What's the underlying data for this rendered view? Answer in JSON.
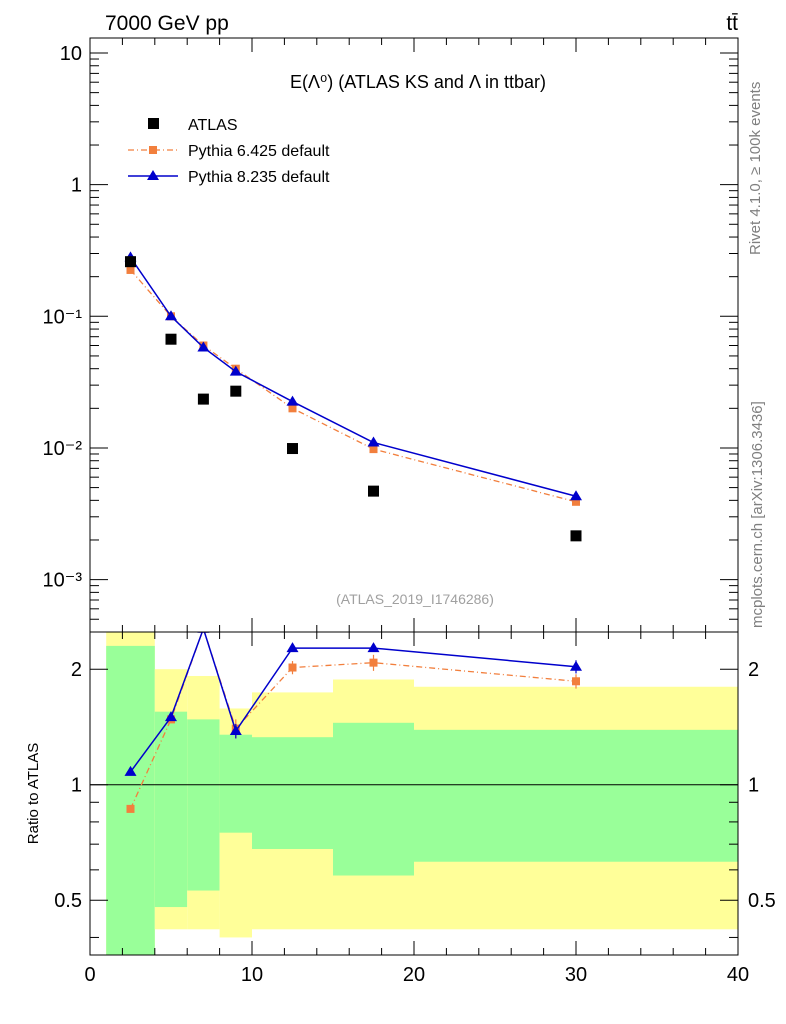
{
  "header": {
    "left": "7000 GeV pp",
    "right": "tt̄"
  },
  "side_labels": {
    "rivet": "Rivet 4.1.0, ≥ 100k events",
    "mcplots": "mcplots.cern.ch [arXiv:1306.3436]"
  },
  "colors": {
    "atlas": "#000000",
    "py6": "#f27f3d",
    "py8": "#0000cc",
    "band_inner": "#99ff99",
    "band_outer": "#ffff99"
  },
  "chart_data": [
    {
      "type": "scatter",
      "title": "E(Λ⁰) (ATLAS KS and Λ in ttbar)",
      "analysis_id": "(ATLAS_2019_I1746286)",
      "xlim": [
        0,
        40
      ],
      "ylim": [
        0.0004,
        13
      ],
      "yscale": "log",
      "yticks": [
        {
          "value": 10,
          "label": "10"
        },
        {
          "value": 1,
          "label": "1"
        },
        {
          "value": 0.1,
          "label": "10⁻¹"
        },
        {
          "value": 0.01,
          "label": "10⁻²"
        },
        {
          "value": 0.001,
          "label": "10⁻³"
        }
      ],
      "legend": {
        "placement": "top-left",
        "entries": [
          "ATLAS",
          "Pythia 6.425 default",
          "Pythia 8.235 default"
        ]
      },
      "series": [
        {
          "name": "ATLAS",
          "x": [
            2.5,
            5,
            7,
            9,
            12.5,
            17.5,
            30
          ],
          "y": [
            0.26,
            0.067,
            0.0235,
            0.027,
            0.0099,
            0.0047,
            0.00215
          ]
        },
        {
          "name": "Pythia 6.425 default",
          "x": [
            2.5,
            5,
            7,
            9,
            12.5,
            17.5,
            30
          ],
          "y": [
            0.225,
            0.1,
            0.06,
            0.04,
            0.02,
            0.0098,
            0.0039
          ]
        },
        {
          "name": "Pythia 8.235 default",
          "x": [
            2.5,
            5,
            7,
            9,
            12.5,
            17.5,
            30
          ],
          "y": [
            0.28,
            0.1,
            0.058,
            0.038,
            0.0225,
            0.011,
            0.0043
          ]
        }
      ]
    },
    {
      "type": "line",
      "ylabel": "Ratio to ATLAS",
      "xlabel": "",
      "xlim": [
        0,
        40
      ],
      "ylim": [
        0.36,
        2.5
      ],
      "yscale": "log",
      "reference_line": 1,
      "xticks": [
        {
          "value": 0,
          "label": "0"
        },
        {
          "value": 10,
          "label": "10"
        },
        {
          "value": 20,
          "label": "20"
        },
        {
          "value": 30,
          "label": "30"
        },
        {
          "value": 40,
          "label": "40"
        }
      ],
      "yticks": [
        {
          "value": 2,
          "label": "2"
        },
        {
          "value": 1,
          "label": "1"
        },
        {
          "value": 0.5,
          "label": "0.5"
        }
      ],
      "bands": [
        {
          "x0": 1,
          "x1": 4,
          "inner": [
            0.3,
            2.3
          ],
          "outer": [
            0.3,
            2.6
          ]
        },
        {
          "x0": 4,
          "x1": 6,
          "inner": [
            0.48,
            1.55
          ],
          "outer": [
            0.42,
            2.0
          ]
        },
        {
          "x0": 6,
          "x1": 8,
          "inner": [
            0.53,
            1.48
          ],
          "outer": [
            0.42,
            1.92
          ]
        },
        {
          "x0": 8,
          "x1": 10,
          "inner": [
            0.75,
            1.35
          ],
          "outer": [
            0.4,
            1.58
          ]
        },
        {
          "x0": 10,
          "x1": 15,
          "inner": [
            0.68,
            1.33
          ],
          "outer": [
            0.42,
            1.74
          ]
        },
        {
          "x0": 15,
          "x1": 20,
          "inner": [
            0.58,
            1.45
          ],
          "outer": [
            0.42,
            1.88
          ]
        },
        {
          "x0": 20,
          "x1": 40,
          "inner": [
            0.63,
            1.39
          ],
          "outer": [
            0.42,
            1.8
          ]
        }
      ],
      "series": [
        {
          "name": "Pythia 6.425 default",
          "x": [
            2.5,
            5,
            7,
            9,
            12.5,
            17.5,
            30
          ],
          "y": [
            0.865,
            1.48,
            2.55,
            1.4,
            2.02,
            2.08,
            1.86
          ],
          "err": [
            0,
            0.03,
            0,
            0.08,
            0.08,
            0.1,
            0.08
          ]
        },
        {
          "name": "Pythia 8.235 default",
          "x": [
            2.5,
            5,
            7,
            9,
            12.5,
            17.5,
            30
          ],
          "y": [
            1.08,
            1.5,
            2.55,
            1.38,
            2.27,
            2.27,
            2.03
          ],
          "err": [
            0,
            0.03,
            0,
            0.06,
            0.05,
            0.05,
            0.08
          ]
        }
      ]
    }
  ]
}
